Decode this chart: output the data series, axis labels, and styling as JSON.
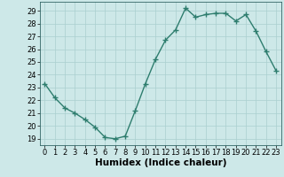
{
  "x": [
    0,
    1,
    2,
    3,
    4,
    5,
    6,
    7,
    8,
    9,
    10,
    11,
    12,
    13,
    14,
    15,
    16,
    17,
    18,
    19,
    20,
    21,
    22,
    23
  ],
  "y": [
    23.3,
    22.2,
    21.4,
    21.0,
    20.5,
    19.9,
    19.1,
    19.0,
    19.2,
    21.2,
    23.3,
    25.2,
    26.7,
    27.5,
    29.2,
    28.5,
    28.7,
    28.8,
    28.8,
    28.2,
    28.7,
    27.4,
    25.8,
    24.3
  ],
  "xlabel": "Humidex (Indice chaleur)",
  "ylim": [
    18.5,
    29.7
  ],
  "xlim": [
    -0.5,
    23.5
  ],
  "yticks": [
    19,
    20,
    21,
    22,
    23,
    24,
    25,
    26,
    27,
    28,
    29
  ],
  "xticks": [
    0,
    1,
    2,
    3,
    4,
    5,
    6,
    7,
    8,
    9,
    10,
    11,
    12,
    13,
    14,
    15,
    16,
    17,
    18,
    19,
    20,
    21,
    22,
    23
  ],
  "line_color": "#2e7d6e",
  "marker": "+",
  "bg_color": "#cde8e8",
  "grid_color": "#aacfcf",
  "xlabel_fontsize": 7.5,
  "tick_fontsize": 6.0,
  "line_width": 1.0,
  "marker_size": 4,
  "marker_edge_width": 1.0
}
